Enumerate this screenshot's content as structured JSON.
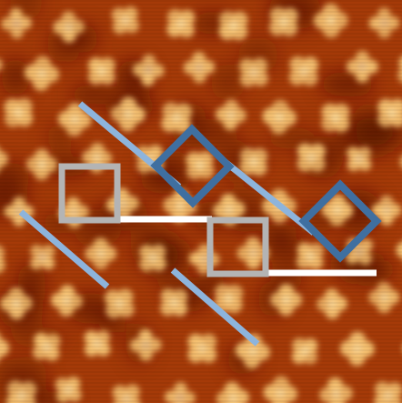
{
  "image": {
    "kind": "STM micrograph with overlay annotations",
    "colors": {
      "background": "#a53a08",
      "dark": "#5a1600",
      "molecule": "#f4c070",
      "molecule_highlight": "#fff0c0",
      "box_grey": "#b4b4b4",
      "box_blue": "#3f6fa0",
      "line_light_blue": "#8db4dc",
      "line_white": "#ffffff"
    }
  }
}
